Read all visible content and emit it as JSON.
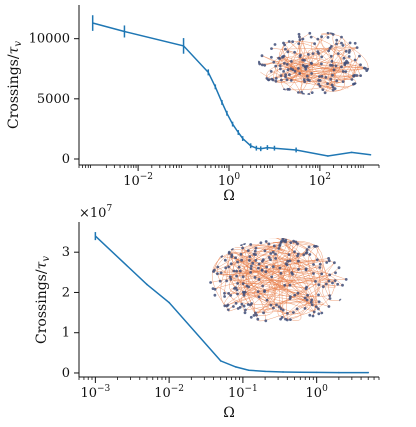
{
  "colors": {
    "line": "#1f77b4",
    "node": "#3f4f7a",
    "edge": "#e8814f",
    "axis": "#111111"
  },
  "chart_data": [
    {
      "type": "line",
      "xscale": "log",
      "xlim": [
        0.0005,
        2000
      ],
      "ylim": [
        -500,
        12800
      ],
      "xlabel": "Ω",
      "ylabel": "Crossings/τ_v",
      "ylabel_main": "Crossings/",
      "ylabel_tau": "τ",
      "ylabel_sub": "v",
      "xticks": [
        {
          "value": 0.01,
          "base": "10",
          "exp": "−2"
        },
        {
          "value": 1,
          "base": "10",
          "exp": "0"
        },
        {
          "value": 100,
          "base": "10",
          "exp": "2"
        }
      ],
      "yticks": [
        {
          "value": 0,
          "label": "0"
        },
        {
          "value": 5000,
          "label": "5000"
        },
        {
          "value": 10000,
          "label": "10000"
        }
      ],
      "series": [
        {
          "x": [
            0.001,
            0.005,
            0.1,
            0.35,
            0.5,
            0.7,
            0.9,
            1.2,
            1.6,
            2.0,
            3.0,
            4.0,
            5.0,
            7.0,
            10,
            30,
            150,
            500,
            1300
          ],
          "y": [
            11300,
            10600,
            9400,
            7200,
            6000,
            4700,
            3800,
            2900,
            2200,
            1700,
            1100,
            900,
            850,
            950,
            900,
            750,
            250,
            550,
            350
          ],
          "err": [
            650,
            500,
            650,
            250,
            200,
            200,
            200,
            200,
            200,
            200,
            200,
            200,
            200,
            200,
            200,
            200,
            0,
            0,
            0
          ]
        }
      ]
    },
    {
      "type": "line",
      "xscale": "log",
      "xlim": [
        0.0006,
        7
      ],
      "ylim": [
        -0.1,
        3.75
      ],
      "xlabel": "Ω",
      "ylabel": "Crossings/τ_v",
      "ylabel_main": "Crossings/",
      "ylabel_tau": "τ",
      "ylabel_sub": "v",
      "multiplier_base": "×10",
      "multiplier_exp": "7",
      "xticks": [
        {
          "value": 0.001,
          "base": "10",
          "exp": "−3"
        },
        {
          "value": 0.01,
          "base": "10",
          "exp": "−2"
        },
        {
          "value": 0.1,
          "base": "10",
          "exp": "−1"
        },
        {
          "value": 1,
          "base": "10",
          "exp": "0"
        }
      ],
      "yticks": [
        {
          "value": 0,
          "label": "0"
        },
        {
          "value": 1,
          "label": "1"
        },
        {
          "value": 2,
          "label": "2"
        },
        {
          "value": 3,
          "label": "3"
        }
      ],
      "series": [
        {
          "x": [
            0.001,
            0.005,
            0.01,
            0.05,
            0.08,
            0.12,
            0.2,
            0.35,
            0.6,
            1.0,
            2.0,
            5.0
          ],
          "y": [
            3.4,
            2.2,
            1.75,
            0.3,
            0.15,
            0.07,
            0.04,
            0.025,
            0.02,
            0.015,
            0.01,
            0.01
          ],
          "err": [
            0.1,
            0,
            0,
            0,
            0,
            0,
            0,
            0,
            0,
            0,
            0,
            0
          ]
        }
      ]
    }
  ]
}
